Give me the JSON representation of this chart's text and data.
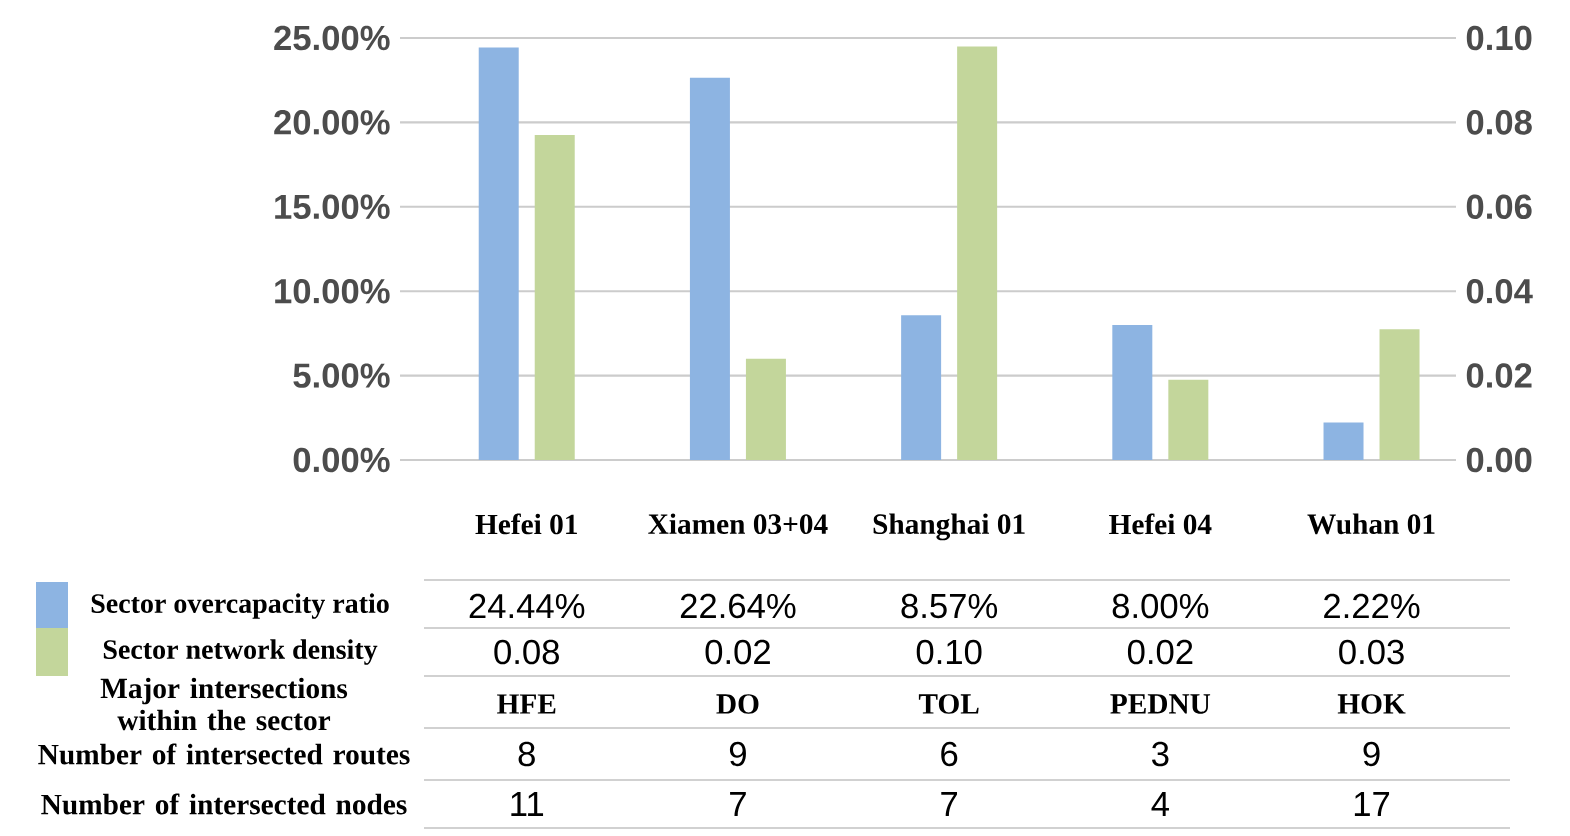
{
  "chart_data": {
    "type": "bar",
    "categories": [
      "Hefei 01",
      "Xiamen 03+04",
      "Shanghai 01",
      "Hefei 04",
      "Wuhan 01"
    ],
    "series": [
      {
        "name": "Sector overcapacity ratio",
        "color": "#8db4e2",
        "values": [
          24.44,
          22.64,
          8.57,
          8.0,
          2.22
        ],
        "value_labels": [
          "24.44%",
          "22.64%",
          "8.57%",
          "8.00%",
          "2.22%"
        ]
      },
      {
        "name": "Sector network density",
        "color": "#c3d69b",
        "axis": "y2",
        "values": [
          0.077,
          0.024,
          0.098,
          0.019,
          0.031
        ],
        "value_labels": [
          "0.08",
          "0.02",
          "0.10",
          "0.02",
          "0.03"
        ]
      }
    ],
    "ylim": [
      0,
      25
    ],
    "yticks": [
      {
        "value": 0,
        "label": "0.00%"
      },
      {
        "value": 5,
        "label": "5.00%"
      },
      {
        "value": 10,
        "label": "10.00%"
      },
      {
        "value": 15,
        "label": "15.00%"
      },
      {
        "value": 20,
        "label": "20.00%"
      },
      {
        "value": 25,
        "label": "25.00%"
      }
    ],
    "y2lim": [
      0,
      0.1
    ],
    "y2ticks": [
      {
        "value": 0,
        "label": "0.00"
      },
      {
        "value": 0.02,
        "label": "0.02"
      },
      {
        "value": 0.04,
        "label": "0.04"
      },
      {
        "value": 0.06,
        "label": "0.06"
      },
      {
        "value": 0.08,
        "label": "0.08"
      },
      {
        "value": 0.1,
        "label": "0.10"
      }
    ],
    "grid": "y",
    "legend": "bottom left",
    "annotations": [
      "Major intersections within the sector",
      "HFE",
      "DO",
      "TOL",
      "PEDNU",
      "HOK",
      "Number of intersected routes",
      "8",
      "9",
      "6",
      "3",
      "9",
      "Number of intersected nodes",
      "11",
      "7",
      "7",
      "4",
      "17"
    ]
  }
}
